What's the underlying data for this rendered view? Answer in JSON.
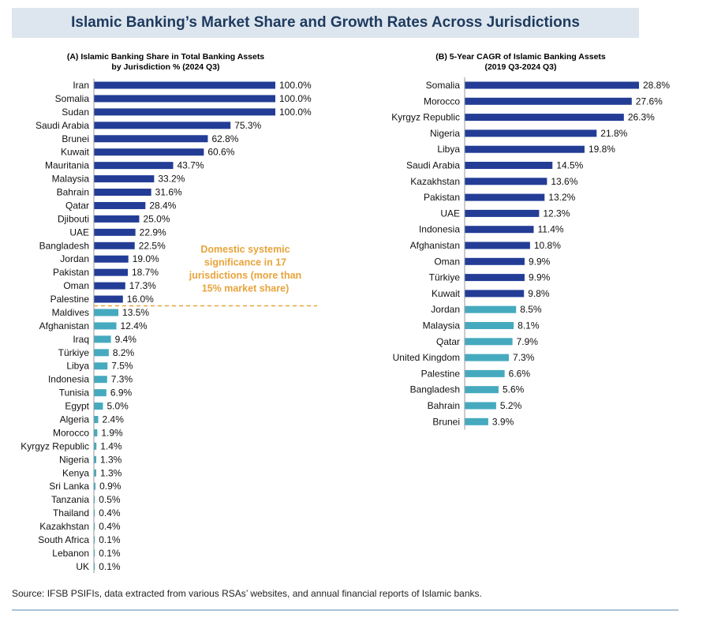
{
  "title": "Islamic Banking’s Market Share and Growth Rates Across Jurisdictions",
  "colors": {
    "dark": "#233d96",
    "light": "#46aabf",
    "annotation": "#e8a33a",
    "title_bg": "#dde6ee",
    "title_text": "#1e3a5f"
  },
  "source": "Source: IFSB PSIFIs, data extracted from various RSAs’ websites, and annual financial reports of Islamic banks.",
  "annotation": {
    "lines": [
      "Domestic systemic",
      "significance in 17",
      "jurisdictions (more than",
      "15% market share)"
    ]
  },
  "chart_data": [
    {
      "type": "bar",
      "orientation": "horizontal",
      "title_lines": [
        "(A) Islamic Banking Share in Total Banking Assets",
        "by Jurisdiction % (2024 Q3)"
      ],
      "unit_suffix": "%",
      "xlim": [
        0,
        100
      ],
      "categories": [
        "Iran",
        "Somalia",
        "Sudan",
        "Saudi Arabia",
        "Brunei",
        "Kuwait",
        "Mauritania",
        "Malaysia",
        "Bahrain",
        "Qatar",
        "Djibouti",
        "UAE",
        "Bangladesh",
        "Jordan",
        "Pakistan",
        "Oman",
        "Palestine",
        "Maldives",
        "Afghanistan",
        "Iraq",
        "Türkiye",
        "Libya",
        "Indonesia",
        "Tunisia",
        "Egypt",
        "Algeria",
        "Morocco",
        "Kyrgyz Republic",
        "Nigeria",
        "Kenya",
        "Sri Lanka",
        "Tanzania",
        "Thailand",
        "Kazakhstan",
        "South Africa",
        "Lebanon",
        "UK"
      ],
      "values": [
        100.0,
        100.0,
        100.0,
        75.3,
        62.8,
        60.6,
        43.7,
        33.2,
        31.6,
        28.4,
        25.0,
        22.9,
        22.5,
        19.0,
        18.7,
        17.3,
        16.0,
        13.5,
        12.4,
        9.4,
        8.2,
        7.5,
        7.3,
        6.9,
        5.0,
        2.4,
        1.9,
        1.4,
        1.3,
        1.3,
        0.9,
        0.5,
        0.4,
        0.4,
        0.1,
        0.1,
        0.1
      ],
      "value_labels": [
        "100.0%",
        "100.0%",
        "100.0%",
        "75.3%",
        "62.8%",
        "60.6%",
        "43.7%",
        "33.2%",
        "31.6%",
        "28.4%",
        "25.0%",
        "22.9%",
        "22.5%",
        "19.0%",
        "18.7%",
        "17.3%",
        "16.0%",
        "13.5%",
        "12.4%",
        "9.4%",
        "8.2%",
        "7.5%",
        "7.3%",
        "6.9%",
        "5.0%",
        "2.4%",
        "1.9%",
        "1.4%",
        "1.3%",
        "1.3%",
        "0.9%",
        "0.5%",
        "0.4%",
        "0.4%",
        "0.1%",
        "0.1%",
        "0.1%"
      ],
      "highlight_count": 17
    },
    {
      "type": "bar",
      "orientation": "horizontal",
      "title_lines": [
        "(B) 5-Year CAGR of Islamic Banking Assets",
        "(2019 Q3-2024 Q3)"
      ],
      "unit_suffix": "%",
      "xlim": [
        0,
        28.8
      ],
      "categories": [
        "Somalia",
        "Morocco",
        "Kyrgyz Republic",
        "Nigeria",
        "Libya",
        "Saudi Arabia",
        "Kazakhstan",
        "Pakistan",
        "UAE",
        "Indonesia",
        "Afghanistan",
        "Oman",
        "Türkiye",
        "Kuwait",
        "Jordan",
        "Malaysia",
        "Qatar",
        "United Kingdom",
        "Palestine",
        "Bangladesh",
        "Bahrain",
        "Brunei"
      ],
      "values": [
        28.8,
        27.6,
        26.3,
        21.8,
        19.8,
        14.5,
        13.6,
        13.2,
        12.3,
        11.4,
        10.8,
        9.9,
        9.9,
        9.8,
        8.5,
        8.1,
        7.9,
        7.3,
        6.6,
        5.6,
        5.2,
        3.9
      ],
      "value_labels": [
        "28.8%",
        "27.6%",
        "26.3%",
        "21.8%",
        "19.8%",
        "14.5%",
        "13.6%",
        "13.2%",
        "12.3%",
        "11.4%",
        "10.8%",
        "9.9%",
        "9.9%",
        "9.8%",
        "8.5%",
        "8.1%",
        "7.9%",
        "7.3%",
        "6.6%",
        "5.6%",
        "5.2%",
        "3.9%"
      ],
      "highlight_count": 14
    }
  ]
}
